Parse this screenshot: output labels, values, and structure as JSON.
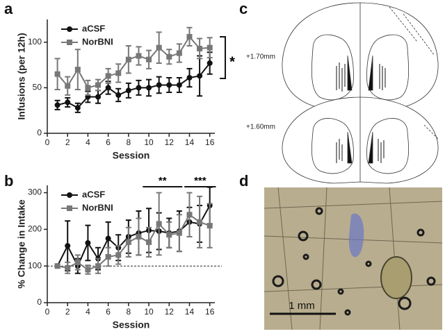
{
  "panel_labels": [
    "a",
    "b",
    "c",
    "d"
  ],
  "chart_data": [
    {
      "type": "line",
      "x_label": "Session",
      "y_label": "Infusions (per 12h)",
      "x": [
        1,
        2,
        3,
        4,
        5,
        6,
        7,
        8,
        9,
        10,
        11,
        12,
        13,
        14,
        15,
        16
      ],
      "xlim": [
        0,
        16.5
      ],
      "xticks": [
        0,
        2,
        4,
        6,
        8,
        10,
        12,
        14,
        16
      ],
      "ylim": [
        0,
        125
      ],
      "yticks": [
        0,
        50,
        100
      ],
      "legend": "upper left",
      "significance": [
        "*"
      ],
      "series": [
        {
          "name": "aCSF",
          "color": "#111111",
          "marker": "circle",
          "values": [
            31,
            34,
            28,
            40,
            40,
            50,
            42,
            47,
            50,
            50,
            53,
            53,
            53,
            61,
            63,
            77
          ],
          "errors": [
            5,
            5,
            5,
            6,
            7,
            7,
            7,
            8,
            8,
            9,
            9,
            8,
            8,
            10,
            22,
            12
          ]
        },
        {
          "name": "NorBNI",
          "color": "#777777",
          "marker": "square",
          "values": [
            65,
            52,
            70,
            50,
            53,
            63,
            66,
            81,
            85,
            81,
            94,
            84,
            88,
            106,
            93,
            94
          ],
          "errors": [
            17,
            10,
            22,
            8,
            6,
            8,
            10,
            15,
            10,
            10,
            17,
            8,
            10,
            10,
            11,
            11
          ]
        }
      ]
    },
    {
      "type": "line",
      "x_label": "Session",
      "y_label": "% Change in Intake",
      "x": [
        1,
        2,
        3,
        4,
        5,
        6,
        7,
        8,
        9,
        10,
        11,
        12,
        13,
        14,
        15,
        16
      ],
      "xlim": [
        0,
        16.5
      ],
      "xticks": [
        0,
        2,
        4,
        6,
        8,
        10,
        12,
        14,
        16
      ],
      "ylim": [
        0,
        320
      ],
      "yticks": [
        0,
        100,
        200,
        300
      ],
      "reference_line": 100,
      "legend": "upper left",
      "significance": [
        "**",
        "***"
      ],
      "series": [
        {
          "name": "aCSF",
          "color": "#111111",
          "marker": "circle",
          "values": [
            100,
            155,
            100,
            163,
            120,
            175,
            150,
            180,
            190,
            197,
            195,
            190,
            195,
            220,
            215,
            265
          ],
          "errors": [
            5,
            68,
            20,
            48,
            30,
            45,
            35,
            45,
            60,
            60,
            50,
            40,
            55,
            40,
            50,
            50
          ]
        },
        {
          "name": "NorBNI",
          "color": "#777777",
          "marker": "square",
          "values": [
            100,
            95,
            110,
            90,
            100,
            125,
            130,
            165,
            180,
            165,
            215,
            185,
            190,
            240,
            220,
            210
          ],
          "errors": [
            5,
            15,
            20,
            12,
            20,
            25,
            25,
            40,
            50,
            40,
            85,
            35,
            50,
            60,
            70,
            60
          ]
        }
      ]
    }
  ],
  "diagram": {
    "labels": [
      "+1.70mm",
      "+1.60mm"
    ]
  },
  "micrograph": {
    "scale_label": "1 mm"
  }
}
